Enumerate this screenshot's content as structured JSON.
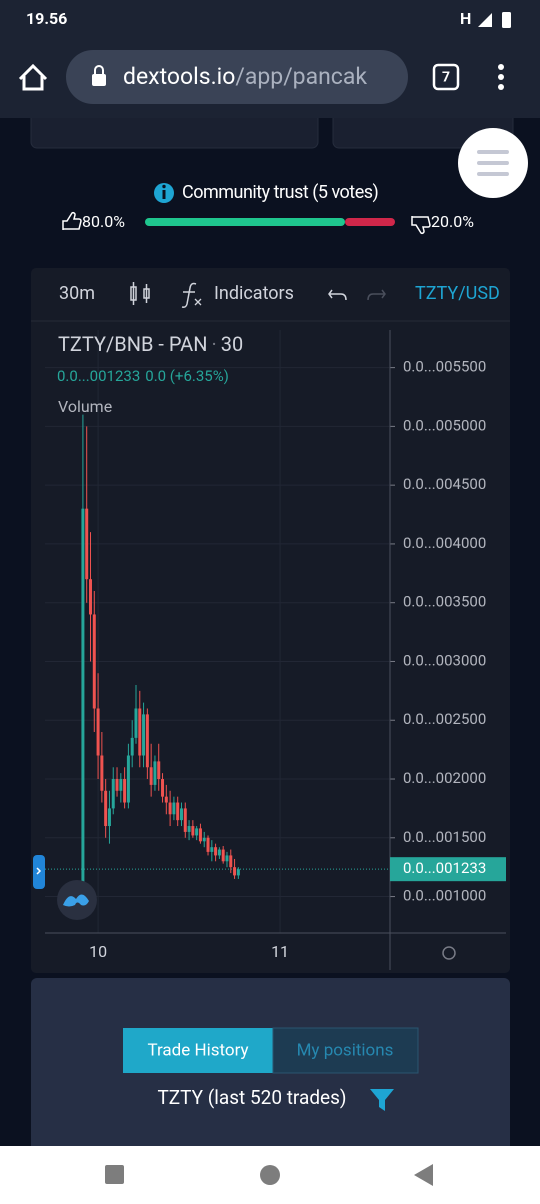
{
  "status_bar": {
    "time": "19.56",
    "network": "H"
  },
  "browser": {
    "url_domain": "dextools.io",
    "url_path": "/app/pancak",
    "tabs": "7"
  },
  "community_trust": {
    "label": "Community trust (5 votes)",
    "up": {
      "value": 80,
      "label": "80.0%"
    },
    "down": {
      "value": 20,
      "label": "20.0%"
    }
  },
  "toolbar": {
    "interval": "30m",
    "indicators": "Indicators",
    "pair": "TZTY/USD"
  },
  "chart_data": {
    "type": "candlestick",
    "title": "TZTY/BNB - PAN",
    "interval": "30",
    "price_info": "0.0...001233",
    "change_info": "0.0 (+6.35%)",
    "volume_label": "Volume",
    "up_color": "#26a69a",
    "down_color": "#ef5350",
    "x": [
      -4,
      -3,
      -2,
      -1,
      0,
      1,
      2,
      3,
      4,
      5,
      6,
      7,
      8,
      9,
      10,
      11,
      12,
      13,
      14,
      15,
      16,
      17,
      18,
      19,
      20,
      21,
      22,
      23,
      24,
      25,
      26,
      27,
      28,
      29,
      30,
      31,
      32,
      33,
      34,
      35,
      36,
      37
    ],
    "open": [
      1100,
      4300,
      3700,
      3400,
      2600,
      2200,
      1900,
      1600,
      1750,
      2000,
      1900,
      2000,
      1800,
      2200,
      2350,
      2600,
      2200,
      2550,
      2100,
      1950,
      2150,
      2000,
      1850,
      1800,
      1700,
      1800,
      1650,
      1750,
      1550,
      1600,
      1520,
      1580,
      1470,
      1500,
      1380,
      1420,
      1350,
      1400,
      1300,
      1350,
      1250,
      1180
    ],
    "high": [
      5100,
      5000,
      4100,
      3600,
      2900,
      2400,
      2000,
      1900,
      2100,
      2100,
      2050,
      2100,
      2300,
      2500,
      2800,
      2750,
      2650,
      2600,
      2300,
      2200,
      2300,
      2050,
      1950,
      1900,
      1850,
      1850,
      1800,
      1800,
      1650,
      1650,
      1600,
      1620,
      1550,
      1520,
      1480,
      1450,
      1420,
      1430,
      1380,
      1400,
      1320,
      1250
    ],
    "low": [
      1000,
      3500,
      3000,
      2400,
      2000,
      1800,
      1500,
      1450,
      1700,
      1850,
      1800,
      1750,
      1750,
      2100,
      2300,
      2100,
      2100,
      2000,
      1850,
      1900,
      1900,
      1800,
      1700,
      1600,
      1650,
      1600,
      1600,
      1500,
      1480,
      1500,
      1480,
      1450,
      1420,
      1350,
      1300,
      1300,
      1320,
      1280,
      1250,
      1200,
      1150,
      1150
    ],
    "close": [
      4300,
      3700,
      3400,
      2600,
      2200,
      1900,
      1600,
      1750,
      2000,
      1900,
      2000,
      1800,
      2200,
      2350,
      2600,
      2200,
      2550,
      2100,
      1950,
      2150,
      2000,
      1850,
      1800,
      1700,
      1800,
      1650,
      1750,
      1550,
      1600,
      1520,
      1580,
      1470,
      1500,
      1380,
      1420,
      1350,
      1400,
      1300,
      1350,
      1250,
      1180,
      1233
    ],
    "xlim": [
      -14,
      77
    ],
    "xticks": [
      {
        "value": 0,
        "label": "10"
      },
      {
        "value": 48,
        "label": "11"
      }
    ],
    "ylim": [
      690,
      5820
    ],
    "yticks": [
      {
        "value": 5500,
        "label": "0.0...005500"
      },
      {
        "value": 5000,
        "label": "0.0...005000"
      },
      {
        "value": 4500,
        "label": "0.0...004500"
      },
      {
        "value": 4000,
        "label": "0.0...004000"
      },
      {
        "value": 3500,
        "label": "0.0...003500"
      },
      {
        "value": 3000,
        "label": "0.0...003000"
      },
      {
        "value": 2500,
        "label": "0.0...002500"
      },
      {
        "value": 2000,
        "label": "0.0...002000"
      },
      {
        "value": 1500,
        "label": "0.0...001500"
      },
      {
        "value": 1000,
        "label": "0.0...001000"
      }
    ],
    "last_price": {
      "value": 1233,
      "label": "0.0...001233"
    },
    "grid": true
  },
  "trade": {
    "tabs": [
      "Trade History",
      "My positions"
    ],
    "subtitle": "TZTY (last 520 trades)"
  }
}
